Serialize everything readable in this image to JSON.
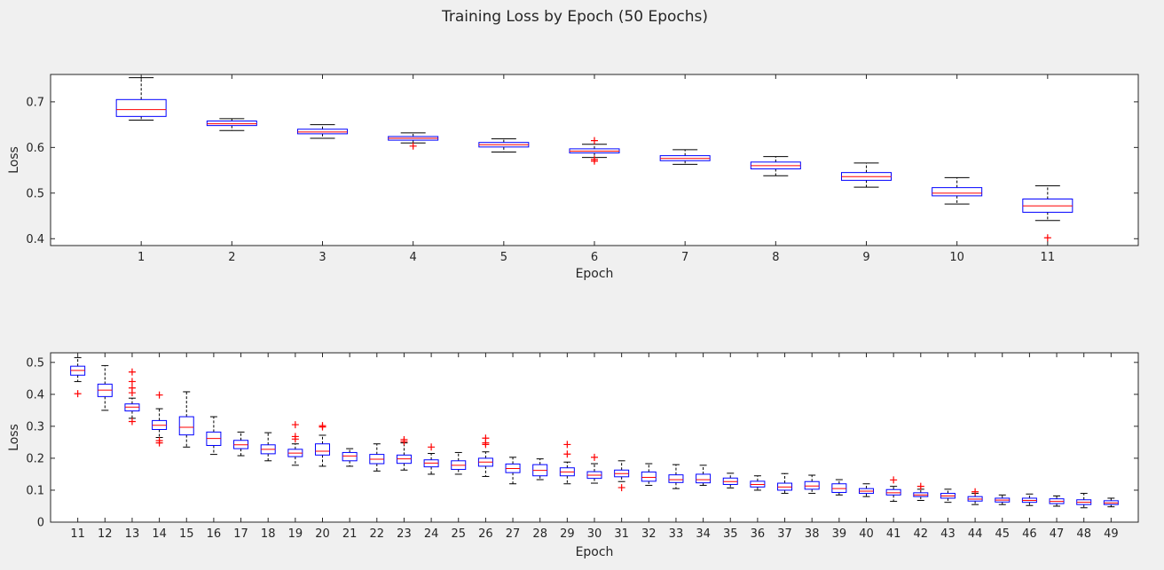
{
  "title": "Training Loss by Epoch (50 Epochs)",
  "colors": {
    "background": "#f0f0f0",
    "axes": "#ffffff",
    "box": "#0000ff",
    "median": "#ff0000",
    "whisker": "#000000",
    "outlier": "#ff0000"
  },
  "chart_data": [
    {
      "type": "boxplot",
      "xlabel": "Epoch",
      "ylabel": "Loss",
      "ylim": [
        0.385,
        0.76
      ],
      "yticks": [
        0.4,
        0.5,
        0.6,
        0.7
      ],
      "ytick_labels": [
        "0.4",
        "0.5",
        "0.6",
        "0.7"
      ],
      "grid": false,
      "categories": [
        "1",
        "2",
        "3",
        "4",
        "5",
        "6",
        "7",
        "8",
        "9",
        "10",
        "11"
      ],
      "boxes": [
        {
          "epoch": 1,
          "q1": 0.668,
          "median": 0.683,
          "q3": 0.705,
          "wlo": 0.66,
          "whi": 0.753,
          "outliers": []
        },
        {
          "epoch": 2,
          "q1": 0.648,
          "median": 0.652,
          "q3": 0.658,
          "wlo": 0.637,
          "whi": 0.663,
          "outliers": []
        },
        {
          "epoch": 3,
          "q1": 0.63,
          "median": 0.634,
          "q3": 0.64,
          "wlo": 0.62,
          "whi": 0.65,
          "outliers": []
        },
        {
          "epoch": 4,
          "q1": 0.616,
          "median": 0.62,
          "q3": 0.624,
          "wlo": 0.61,
          "whi": 0.632,
          "outliers": [
            0.603
          ]
        },
        {
          "epoch": 5,
          "q1": 0.601,
          "median": 0.606,
          "q3": 0.611,
          "wlo": 0.59,
          "whi": 0.619,
          "outliers": []
        },
        {
          "epoch": 6,
          "q1": 0.588,
          "median": 0.592,
          "q3": 0.597,
          "wlo": 0.578,
          "whi": 0.607,
          "outliers": [
            0.615,
            0.574,
            0.57
          ]
        },
        {
          "epoch": 7,
          "q1": 0.571,
          "median": 0.576,
          "q3": 0.582,
          "wlo": 0.563,
          "whi": 0.595,
          "outliers": []
        },
        {
          "epoch": 8,
          "q1": 0.553,
          "median": 0.56,
          "q3": 0.568,
          "wlo": 0.538,
          "whi": 0.58,
          "outliers": []
        },
        {
          "epoch": 9,
          "q1": 0.528,
          "median": 0.536,
          "q3": 0.545,
          "wlo": 0.513,
          "whi": 0.566,
          "outliers": []
        },
        {
          "epoch": 10,
          "q1": 0.494,
          "median": 0.5,
          "q3": 0.512,
          "wlo": 0.476,
          "whi": 0.534,
          "outliers": []
        },
        {
          "epoch": 11,
          "q1": 0.458,
          "median": 0.472,
          "q3": 0.487,
          "wlo": 0.44,
          "whi": 0.516,
          "outliers": [
            0.402
          ]
        }
      ]
    },
    {
      "type": "boxplot",
      "xlabel": "Epoch",
      "ylabel": "Loss",
      "ylim": [
        0,
        0.53
      ],
      "yticks": [
        0,
        0.1,
        0.2,
        0.3,
        0.4,
        0.5
      ],
      "ytick_labels": [
        "0",
        "0.1",
        "0.2",
        "0.3",
        "0.4",
        "0.5"
      ],
      "grid": false,
      "categories": [
        "11",
        "12",
        "13",
        "14",
        "15",
        "16",
        "17",
        "18",
        "19",
        "20",
        "21",
        "22",
        "23",
        "24",
        "25",
        "26",
        "27",
        "28",
        "29",
        "30",
        "31",
        "32",
        "33",
        "34",
        "35",
        "36",
        "37",
        "38",
        "39",
        "40",
        "41",
        "42",
        "43",
        "44",
        "45",
        "46",
        "47",
        "48",
        "49"
      ],
      "boxes": [
        {
          "epoch": 11,
          "q1": 0.46,
          "median": 0.475,
          "q3": 0.488,
          "wlo": 0.44,
          "whi": 0.515,
          "outliers": [
            0.402
          ]
        },
        {
          "epoch": 12,
          "q1": 0.393,
          "median": 0.413,
          "q3": 0.432,
          "wlo": 0.35,
          "whi": 0.49,
          "outliers": []
        },
        {
          "epoch": 13,
          "q1": 0.348,
          "median": 0.36,
          "q3": 0.37,
          "wlo": 0.325,
          "whi": 0.388,
          "outliers": [
            0.47,
            0.44,
            0.42,
            0.405,
            0.315
          ]
        },
        {
          "epoch": 14,
          "q1": 0.29,
          "median": 0.303,
          "q3": 0.318,
          "wlo": 0.265,
          "whi": 0.355,
          "outliers": [
            0.398,
            0.255,
            0.248
          ]
        },
        {
          "epoch": 15,
          "q1": 0.273,
          "median": 0.297,
          "q3": 0.33,
          "wlo": 0.235,
          "whi": 0.408,
          "outliers": []
        },
        {
          "epoch": 16,
          "q1": 0.24,
          "median": 0.262,
          "q3": 0.282,
          "wlo": 0.212,
          "whi": 0.33,
          "outliers": []
        },
        {
          "epoch": 17,
          "q1": 0.23,
          "median": 0.242,
          "q3": 0.256,
          "wlo": 0.208,
          "whi": 0.282,
          "outliers": []
        },
        {
          "epoch": 18,
          "q1": 0.214,
          "median": 0.228,
          "q3": 0.242,
          "wlo": 0.192,
          "whi": 0.28,
          "outliers": []
        },
        {
          "epoch": 19,
          "q1": 0.205,
          "median": 0.216,
          "q3": 0.228,
          "wlo": 0.178,
          "whi": 0.245,
          "outliers": [
            0.305,
            0.268,
            0.26
          ]
        },
        {
          "epoch": 20,
          "q1": 0.21,
          "median": 0.222,
          "q3": 0.245,
          "wlo": 0.175,
          "whi": 0.272,
          "outliers": [
            0.302,
            0.298
          ]
        },
        {
          "epoch": 21,
          "q1": 0.192,
          "median": 0.207,
          "q3": 0.218,
          "wlo": 0.175,
          "whi": 0.23,
          "outliers": []
        },
        {
          "epoch": 22,
          "q1": 0.183,
          "median": 0.197,
          "q3": 0.212,
          "wlo": 0.16,
          "whi": 0.245,
          "outliers": []
        },
        {
          "epoch": 23,
          "q1": 0.184,
          "median": 0.198,
          "q3": 0.21,
          "wlo": 0.163,
          "whi": 0.248,
          "outliers": [
            0.258,
            0.252
          ]
        },
        {
          "epoch": 24,
          "q1": 0.173,
          "median": 0.185,
          "q3": 0.195,
          "wlo": 0.15,
          "whi": 0.215,
          "outliers": [
            0.235
          ]
        },
        {
          "epoch": 25,
          "q1": 0.165,
          "median": 0.178,
          "q3": 0.192,
          "wlo": 0.15,
          "whi": 0.218,
          "outliers": []
        },
        {
          "epoch": 26,
          "q1": 0.175,
          "median": 0.188,
          "q3": 0.2,
          "wlo": 0.143,
          "whi": 0.22,
          "outliers": [
            0.263,
            0.248,
            0.243
          ]
        },
        {
          "epoch": 27,
          "q1": 0.155,
          "median": 0.168,
          "q3": 0.182,
          "wlo": 0.12,
          "whi": 0.203,
          "outliers": []
        },
        {
          "epoch": 28,
          "q1": 0.145,
          "median": 0.162,
          "q3": 0.18,
          "wlo": 0.133,
          "whi": 0.198,
          "outliers": []
        },
        {
          "epoch": 29,
          "q1": 0.145,
          "median": 0.157,
          "q3": 0.17,
          "wlo": 0.12,
          "whi": 0.188,
          "outliers": [
            0.243,
            0.213
          ]
        },
        {
          "epoch": 30,
          "q1": 0.137,
          "median": 0.147,
          "q3": 0.158,
          "wlo": 0.122,
          "whi": 0.183,
          "outliers": [
            0.203
          ]
        },
        {
          "epoch": 31,
          "q1": 0.142,
          "median": 0.152,
          "q3": 0.163,
          "wlo": 0.127,
          "whi": 0.192,
          "outliers": [
            0.108
          ]
        },
        {
          "epoch": 32,
          "q1": 0.128,
          "median": 0.14,
          "q3": 0.157,
          "wlo": 0.115,
          "whi": 0.183,
          "outliers": []
        },
        {
          "epoch": 33,
          "q1": 0.124,
          "median": 0.133,
          "q3": 0.148,
          "wlo": 0.105,
          "whi": 0.18,
          "outliers": []
        },
        {
          "epoch": 34,
          "q1": 0.123,
          "median": 0.133,
          "q3": 0.15,
          "wlo": 0.115,
          "whi": 0.178,
          "outliers": []
        },
        {
          "epoch": 35,
          "q1": 0.118,
          "median": 0.127,
          "q3": 0.138,
          "wlo": 0.107,
          "whi": 0.153,
          "outliers": []
        },
        {
          "epoch": 36,
          "q1": 0.11,
          "median": 0.118,
          "q3": 0.128,
          "wlo": 0.1,
          "whi": 0.145,
          "outliers": []
        },
        {
          "epoch": 37,
          "q1": 0.1,
          "median": 0.11,
          "q3": 0.122,
          "wlo": 0.09,
          "whi": 0.152,
          "outliers": []
        },
        {
          "epoch": 38,
          "q1": 0.103,
          "median": 0.113,
          "q3": 0.127,
          "wlo": 0.09,
          "whi": 0.147,
          "outliers": []
        },
        {
          "epoch": 39,
          "q1": 0.093,
          "median": 0.105,
          "q3": 0.12,
          "wlo": 0.085,
          "whi": 0.133,
          "outliers": []
        },
        {
          "epoch": 40,
          "q1": 0.09,
          "median": 0.097,
          "q3": 0.105,
          "wlo": 0.08,
          "whi": 0.12,
          "outliers": []
        },
        {
          "epoch": 41,
          "q1": 0.085,
          "median": 0.092,
          "q3": 0.102,
          "wlo": 0.065,
          "whi": 0.112,
          "outliers": [
            0.132
          ]
        },
        {
          "epoch": 42,
          "q1": 0.08,
          "median": 0.085,
          "q3": 0.092,
          "wlo": 0.068,
          "whi": 0.103,
          "outliers": [
            0.112
          ]
        },
        {
          "epoch": 43,
          "q1": 0.075,
          "median": 0.082,
          "q3": 0.09,
          "wlo": 0.062,
          "whi": 0.103,
          "outliers": []
        },
        {
          "epoch": 44,
          "q1": 0.066,
          "median": 0.072,
          "q3": 0.08,
          "wlo": 0.055,
          "whi": 0.09,
          "outliers": [
            0.095
          ]
        },
        {
          "epoch": 45,
          "q1": 0.063,
          "median": 0.069,
          "q3": 0.075,
          "wlo": 0.055,
          "whi": 0.085,
          "outliers": []
        },
        {
          "epoch": 46,
          "q1": 0.062,
          "median": 0.068,
          "q3": 0.075,
          "wlo": 0.052,
          "whi": 0.088,
          "outliers": []
        },
        {
          "epoch": 47,
          "q1": 0.058,
          "median": 0.065,
          "q3": 0.073,
          "wlo": 0.05,
          "whi": 0.082,
          "outliers": []
        },
        {
          "epoch": 48,
          "q1": 0.055,
          "median": 0.062,
          "q3": 0.07,
          "wlo": 0.045,
          "whi": 0.09,
          "outliers": []
        },
        {
          "epoch": 49,
          "q1": 0.055,
          "median": 0.06,
          "q3": 0.067,
          "wlo": 0.048,
          "whi": 0.075,
          "outliers": []
        }
      ]
    }
  ]
}
